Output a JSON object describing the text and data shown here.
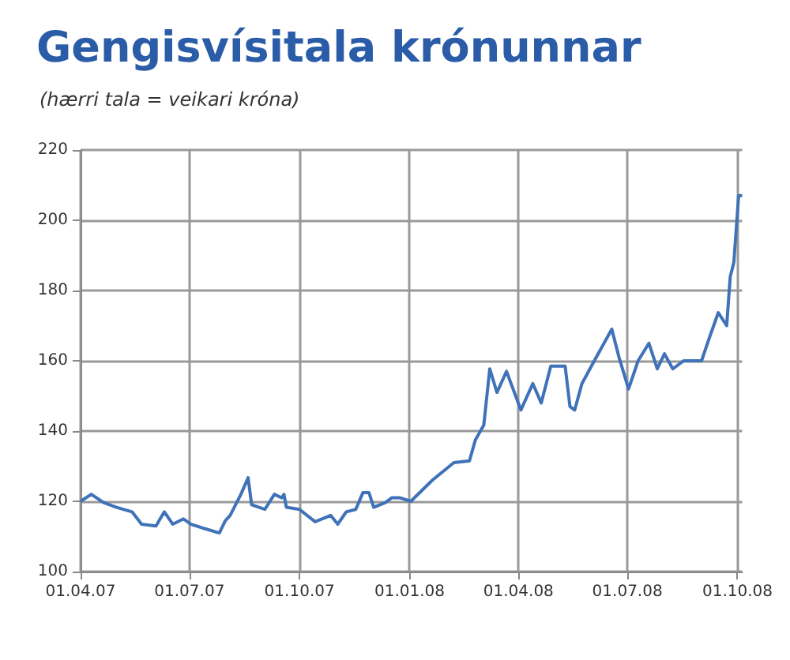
{
  "chart_data": {
    "type": "line",
    "title": "Gengisvísitala krónunnar",
    "subtitle": "(hærri tala = veikari króna)",
    "x": [
      "2007-04-01",
      "2007-04-10",
      "2007-04-20",
      "2007-05-01",
      "2007-05-14",
      "2007-05-22",
      "2007-06-03",
      "2007-06-10",
      "2007-06-17",
      "2007-06-26",
      "2007-07-02",
      "2007-07-13",
      "2007-07-26",
      "2007-07-31",
      "2007-08-04",
      "2007-08-13",
      "2007-08-19",
      "2007-08-22",
      "2007-09-02",
      "2007-09-10",
      "2007-09-16",
      "2007-09-18",
      "2007-09-20",
      "2007-10-01",
      "2007-10-14",
      "2007-10-27",
      "2007-11-02",
      "2007-11-09",
      "2007-11-17",
      "2007-11-23",
      "2007-11-28",
      "2007-12-02",
      "2007-12-12",
      "2007-12-17",
      "2007-12-24",
      "2008-01-02",
      "2008-01-20",
      "2008-02-07",
      "2008-02-20",
      "2008-02-25",
      "2008-03-03",
      "2008-03-08",
      "2008-03-14",
      "2008-03-22",
      "2008-04-03",
      "2008-04-13",
      "2008-04-20",
      "2008-04-28",
      "2008-05-10",
      "2008-05-14",
      "2008-05-18",
      "2008-05-24",
      "2008-06-05",
      "2008-06-18",
      "2008-06-24",
      "2008-07-02",
      "2008-07-10",
      "2008-07-19",
      "2008-07-26",
      "2008-08-01",
      "2008-08-08",
      "2008-08-17",
      "2008-09-01",
      "2008-09-08",
      "2008-09-15",
      "2008-09-22",
      "2008-09-25",
      "2008-09-28",
      "2008-10-02",
      "2008-10-05"
    ],
    "series": [
      {
        "color": "#3f72b8",
        "values": [
          120,
          122,
          119.7,
          118.3,
          117,
          113.5,
          113,
          117,
          113.5,
          115,
          113.5,
          112.3,
          111,
          114.5,
          116,
          122,
          126.7,
          119,
          117.7,
          122,
          121,
          122,
          118.3,
          117.7,
          114.2,
          116,
          113.5,
          117,
          117.7,
          122.5,
          122.5,
          118.3,
          119.7,
          121,
          121,
          120,
          126,
          131,
          131.5,
          137.5,
          141.7,
          157.7,
          151,
          157,
          146,
          153.5,
          148,
          158.5,
          158.5,
          147,
          146,
          153.5,
          161,
          169,
          161,
          152,
          160,
          165,
          157.7,
          162,
          157.7,
          160,
          160,
          167,
          173.7,
          170,
          184,
          188,
          207,
          207
        ]
      }
    ],
    "xlim": [
      "2007-04-01",
      "2008-10-05"
    ],
    "xticks": [
      {
        "value": "2007-04-01",
        "label": "01.04.07"
      },
      {
        "value": "2007-07-01",
        "label": "01.07.07"
      },
      {
        "value": "2007-10-01",
        "label": "01.10.07"
      },
      {
        "value": "2008-01-01",
        "label": "01.01.08"
      },
      {
        "value": "2008-04-01",
        "label": "01.04.08"
      },
      {
        "value": "2008-07-01",
        "label": "01.07.08"
      },
      {
        "value": "2008-10-01",
        "label": "01.10.08"
      }
    ],
    "ylim": [
      100,
      220
    ],
    "yticks": [
      100,
      120,
      140,
      160,
      180,
      200,
      220
    ],
    "grid": true,
    "marker": "none",
    "line_style": "solid"
  }
}
